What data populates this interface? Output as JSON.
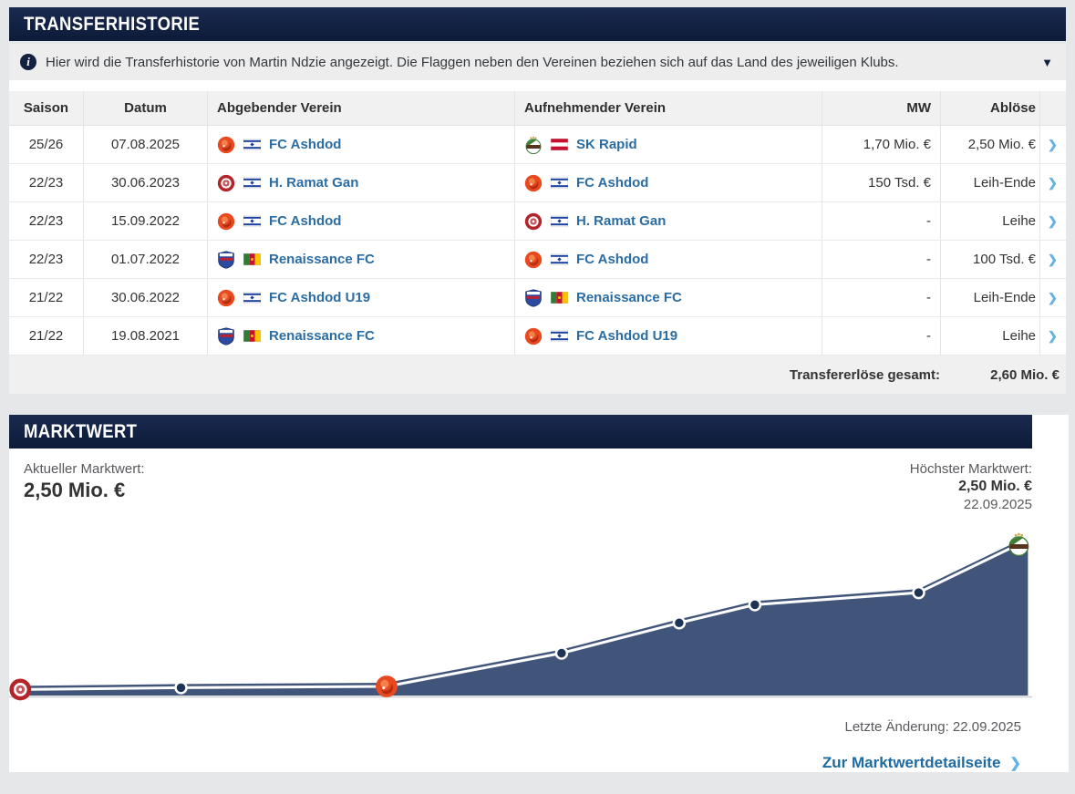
{
  "icons": {
    "info": "i",
    "caret_down": "▼",
    "chevron_right": "❯"
  },
  "colors": {
    "header_navy": "#0c1b38",
    "link_blue": "#2b6da3",
    "chevron_blue": "#64b2e2",
    "chart_fill": "#41547a",
    "chart_line": "#ffffff",
    "chart_dot": "#1e3456"
  },
  "transfer_history": {
    "title": "TRANSFERHISTORIE",
    "info_text": "Hier wird die Transferhistorie von Martin Ndzie angezeigt. Die Flaggen neben den Vereinen beziehen sich auf das Land des jeweiligen Klubs.",
    "columns": [
      "Saison",
      "Datum",
      "Abgebender Verein",
      "Aufnehmender Verein",
      "MW",
      "Ablöse"
    ],
    "rows": [
      {
        "saison": "25/26",
        "datum": "07.08.2025",
        "from": {
          "club": "FC Ashdod",
          "logo": "ashdod",
          "flag": "israel"
        },
        "to": {
          "club": "SK Rapid",
          "logo": "rapid",
          "flag": "austria"
        },
        "mw": "1,70 Mio. €",
        "fee": "2,50 Mio. €"
      },
      {
        "saison": "22/23",
        "datum": "30.06.2023",
        "from": {
          "club": "H. Ramat Gan",
          "logo": "ramatgan",
          "flag": "israel"
        },
        "to": {
          "club": "FC Ashdod",
          "logo": "ashdod",
          "flag": "israel"
        },
        "mw": "150 Tsd. €",
        "fee": "Leih-Ende"
      },
      {
        "saison": "22/23",
        "datum": "15.09.2022",
        "from": {
          "club": "FC Ashdod",
          "logo": "ashdod",
          "flag": "israel"
        },
        "to": {
          "club": "H. Ramat Gan",
          "logo": "ramatgan",
          "flag": "israel"
        },
        "mw": "-",
        "fee": "Leihe"
      },
      {
        "saison": "22/23",
        "datum": "01.07.2022",
        "from": {
          "club": "Renaissance FC",
          "logo": "renaissance",
          "flag": "cameroon"
        },
        "to": {
          "club": "FC Ashdod",
          "logo": "ashdod",
          "flag": "israel"
        },
        "mw": "-",
        "fee": "100 Tsd. €"
      },
      {
        "saison": "21/22",
        "datum": "30.06.2022",
        "from": {
          "club": "FC Ashdod U19",
          "logo": "ashdod",
          "flag": "israel"
        },
        "to": {
          "club": "Renaissance FC",
          "logo": "renaissance",
          "flag": "cameroon"
        },
        "mw": "-",
        "fee": "Leih-Ende"
      },
      {
        "saison": "21/22",
        "datum": "19.08.2021",
        "from": {
          "club": "Renaissance FC",
          "logo": "renaissance",
          "flag": "cameroon"
        },
        "to": {
          "club": "FC Ashdod U19",
          "logo": "ashdod",
          "flag": "israel"
        },
        "mw": "-",
        "fee": "Leihe"
      }
    ],
    "footer": {
      "label": "Transfererlöse gesamt:",
      "value": "2,60 Mio. €"
    }
  },
  "marktwert": {
    "title": "MARKTWERT",
    "current_label": "Aktueller Marktwert:",
    "current_value": "2,50 Mio. €",
    "highest_label": "Höchster Marktwert:",
    "highest_value": "2,50 Mio. €",
    "highest_date": "22.09.2025",
    "last_change": "Letzte Änderung: 22.09.2025",
    "details_link": "Zur Marktwertdetailseite"
  },
  "chart_data": {
    "type": "area",
    "title": "Marktwertentwicklung Martin Ndzie",
    "unit": "Mio. €",
    "ylim": [
      0,
      2.5
    ],
    "grid": false,
    "legend": "none",
    "points": [
      {
        "xfrac": 0.011,
        "value_mio": 0.1,
        "marker": "hapoel-ramat-gan-logo"
      },
      {
        "xfrac": 0.168,
        "value_mio": 0.13,
        "marker": "dot"
      },
      {
        "xfrac": 0.369,
        "value_mio": 0.15,
        "marker": "fc-ashdod-logo"
      },
      {
        "xfrac": 0.54,
        "value_mio": 0.7,
        "marker": "dot"
      },
      {
        "xfrac": 0.655,
        "value_mio": 1.2,
        "marker": "dot"
      },
      {
        "xfrac": 0.729,
        "value_mio": 1.5,
        "marker": "dot"
      },
      {
        "xfrac": 0.889,
        "value_mio": 1.7,
        "marker": "dot"
      },
      {
        "xfrac": 0.987,
        "value_mio": 2.5,
        "marker": "sk-rapid-logo"
      }
    ]
  }
}
